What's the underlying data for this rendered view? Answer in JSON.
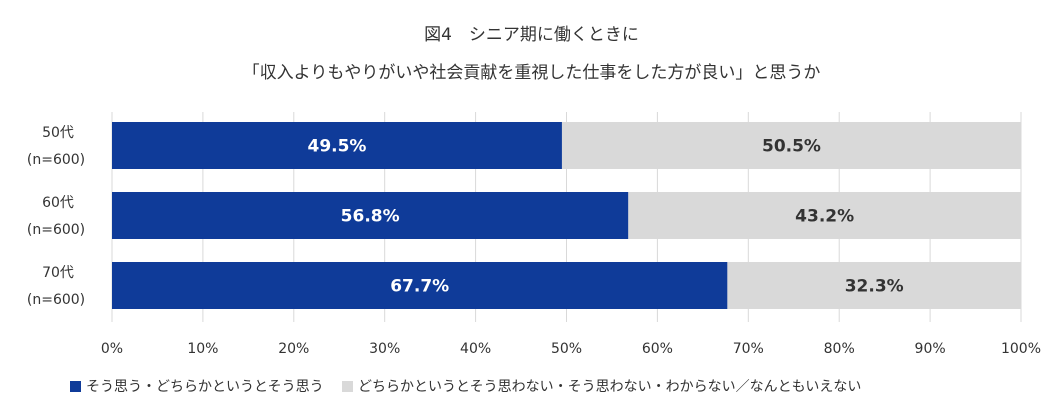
{
  "chart_data": {
    "type": "bar",
    "orientation": "horizontal",
    "stacked": true,
    "title_lines": [
      "図4　シニア期に働くときに",
      "「収入よりもやりがいや社会貢献を重視した仕事をした方が良い」と思うか"
    ],
    "categories": [
      {
        "label": "50代",
        "sublabel": "(n=600)"
      },
      {
        "label": "60代",
        "sublabel": "(n=600)"
      },
      {
        "label": "70代",
        "sublabel": "(n=600)"
      }
    ],
    "series": [
      {
        "name": "そう思う・どちらかというとそう思う",
        "color": "#0f3b99",
        "label_color": "#ffffff",
        "values": [
          49.5,
          56.8,
          67.7
        ]
      },
      {
        "name": "どちらかというとそう思わない・そう思わない・わからない／なんともいえない",
        "color": "#d9d9d9",
        "label_color": "#333333",
        "values": [
          50.5,
          43.2,
          32.3
        ]
      }
    ],
    "value_format": "{v}%",
    "xlim": [
      0,
      100
    ],
    "xticks": [
      0,
      10,
      20,
      30,
      40,
      50,
      60,
      70,
      80,
      90,
      100
    ],
    "tick_suffix": "%",
    "grid": true,
    "legend_position": "bottom"
  }
}
